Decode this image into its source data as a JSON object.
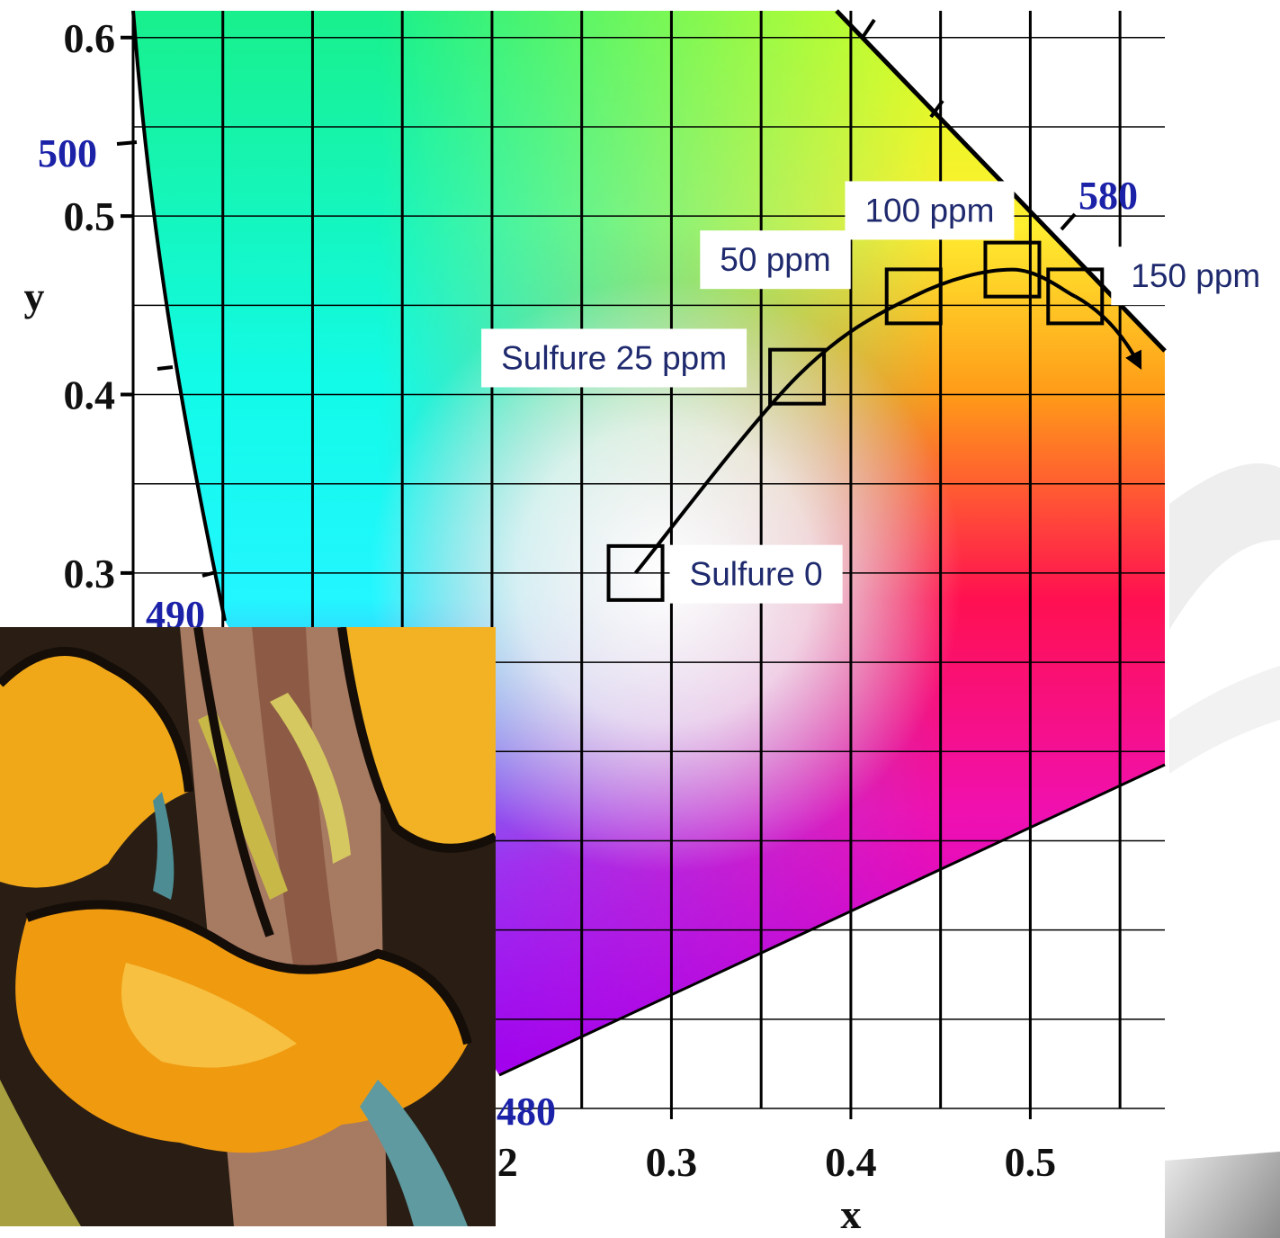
{
  "chart_data": {
    "type": "scatter",
    "x": [
      0.28,
      0.37,
      0.435,
      0.49,
      0.525
    ],
    "values": [
      0.3,
      0.41,
      0.455,
      0.47,
      0.455
    ],
    "point_labels": [
      "Sulfure 0",
      "Sulfure 25 ppm",
      "50 ppm",
      "100 ppm",
      "150 ppm"
    ],
    "xlabel": "x",
    "ylabel": "y",
    "xlim": [
      0,
      0.575
    ],
    "ylim": [
      0,
      0.615
    ],
    "xticks": [
      0.2,
      0.3,
      0.4,
      0.5
    ],
    "yticks": [
      0.3,
      0.4,
      0.5,
      0.6
    ],
    "x_gridlines": [
      0,
      0.05,
      0.1,
      0.15,
      0.2,
      0.25,
      0.3,
      0.35,
      0.4,
      0.45,
      0.5,
      0.55
    ],
    "y_gridlines": [
      0,
      0.05,
      0.1,
      0.15,
      0.2,
      0.25,
      0.3,
      0.35,
      0.4,
      0.45,
      0.5,
      0.55,
      0.6
    ],
    "grid": true,
    "color": "#000000",
    "wavelength_labels": [
      "500",
      "580",
      "490",
      "480"
    ]
  }
}
